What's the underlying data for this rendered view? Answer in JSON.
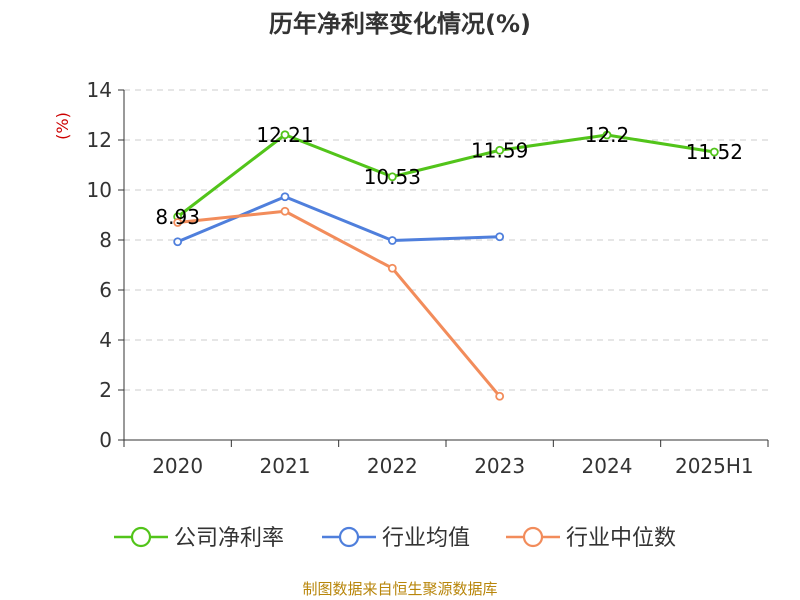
{
  "chart_data": {
    "type": "line",
    "title": "历年净利率变化情况(%)",
    "ylabel": "(%)",
    "categories": [
      "2020",
      "2021",
      "2022",
      "2023",
      "2024",
      "2025H1"
    ],
    "ylim": [
      0,
      14
    ],
    "yticks": [
      0,
      2,
      4,
      6,
      8,
      10,
      12,
      14
    ],
    "grid": true,
    "legend_position": "bottom",
    "series": [
      {
        "name": "公司净利率",
        "color": "#52c41a",
        "values": [
          8.93,
          12.21,
          10.53,
          11.59,
          12.2,
          11.52
        ],
        "labels": [
          "8.93",
          "12.21",
          "10.53",
          "11.59",
          "12.2",
          "11.52"
        ]
      },
      {
        "name": "行业均值",
        "color": "#4f7fdc",
        "values": [
          7.93,
          9.73,
          7.98,
          8.13,
          null,
          null
        ]
      },
      {
        "name": "行业中位数",
        "color": "#f28c5b",
        "values": [
          8.7,
          9.15,
          6.87,
          1.75,
          null,
          null
        ]
      }
    ]
  },
  "source": "制图数据来自恒生聚源数据库"
}
